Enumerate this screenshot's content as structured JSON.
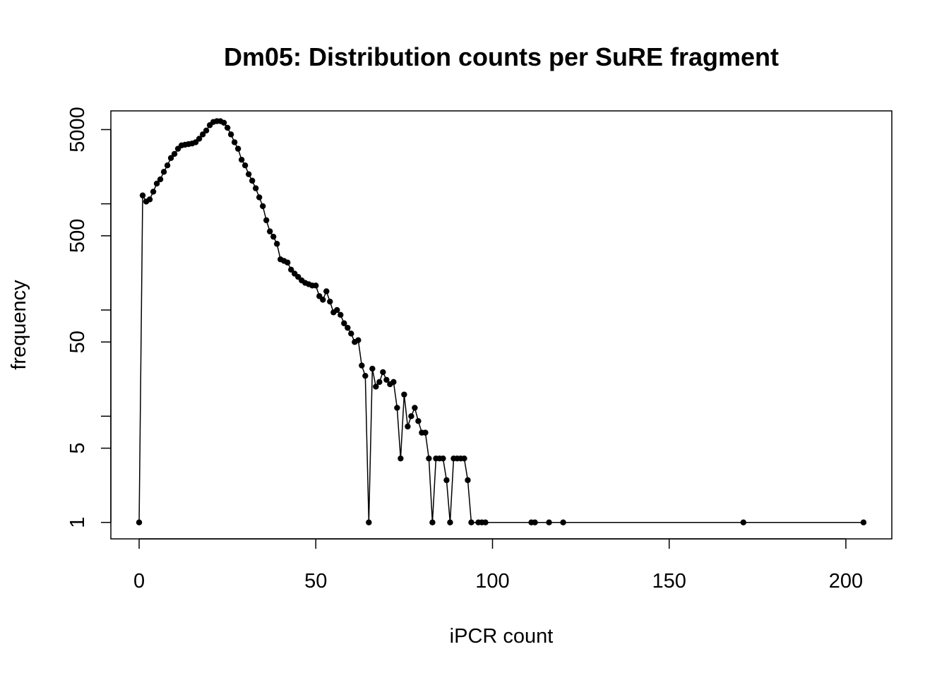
{
  "chart_data": {
    "type": "line",
    "title": "Dm05: Distribution counts per SuRE fragment",
    "xlabel": "iPCR count",
    "ylabel": "frequency",
    "x_scale": "linear",
    "y_scale": "log",
    "xlim": [
      -8,
      213
    ],
    "ylim": [
      0.7,
      7500
    ],
    "x_ticks": [
      0,
      50,
      100,
      150,
      200
    ],
    "x_tick_labels": [
      "0",
      "50",
      "100",
      "150",
      "200"
    ],
    "y_ticks": [
      1,
      5,
      50,
      500,
      5000
    ],
    "y_tick_labels": [
      "1",
      "5",
      "50",
      "500",
      "5000"
    ],
    "y_minor_ticks": [
      10,
      100,
      1000
    ],
    "grid": false,
    "legend": "none",
    "marker": "filled-circle",
    "color": "#000000",
    "series": [
      {
        "x": [
          0,
          1,
          2,
          3,
          4,
          5,
          6,
          7,
          8,
          9,
          10,
          11,
          12,
          13,
          14,
          15,
          16,
          17,
          18,
          19,
          20,
          21,
          22,
          23,
          24,
          25,
          26,
          27,
          28,
          29,
          30,
          31,
          32,
          33,
          34,
          35,
          36,
          37,
          38,
          39,
          40,
          41,
          42,
          43,
          44,
          45,
          46,
          47,
          48,
          49,
          50,
          51,
          52,
          53,
          54,
          55,
          56,
          57,
          58,
          59,
          60,
          61,
          62,
          63,
          64,
          65,
          66,
          67,
          68,
          69,
          70,
          71,
          72,
          73,
          74,
          75,
          76,
          77,
          78,
          79,
          80,
          81,
          82,
          83,
          84,
          85,
          86,
          87,
          88,
          89,
          90,
          91,
          92,
          93,
          94,
          96,
          97,
          98,
          111,
          112,
          116,
          120,
          171,
          205
        ],
        "y": [
          1,
          1200,
          1050,
          1100,
          1300,
          1550,
          1700,
          2000,
          2300,
          2700,
          2950,
          3300,
          3550,
          3600,
          3650,
          3700,
          3800,
          4100,
          4500,
          4900,
          5500,
          5900,
          6000,
          6000,
          5800,
          5200,
          4500,
          3800,
          3300,
          2600,
          2300,
          1900,
          1650,
          1400,
          1150,
          950,
          700,
          550,
          490,
          420,
          300,
          290,
          280,
          240,
          220,
          205,
          190,
          180,
          175,
          170,
          170,
          135,
          125,
          150,
          120,
          95,
          100,
          90,
          75,
          68,
          60,
          50,
          52,
          30,
          24,
          1,
          28,
          19,
          21,
          26,
          22,
          20,
          21,
          12,
          4,
          16,
          8,
          10,
          12,
          9,
          7,
          7,
          4,
          1,
          4,
          4,
          4,
          2.5,
          1,
          4,
          4,
          4,
          4,
          2.5,
          1,
          1,
          1,
          1,
          1,
          1,
          1,
          1,
          1,
          1
        ]
      }
    ]
  }
}
